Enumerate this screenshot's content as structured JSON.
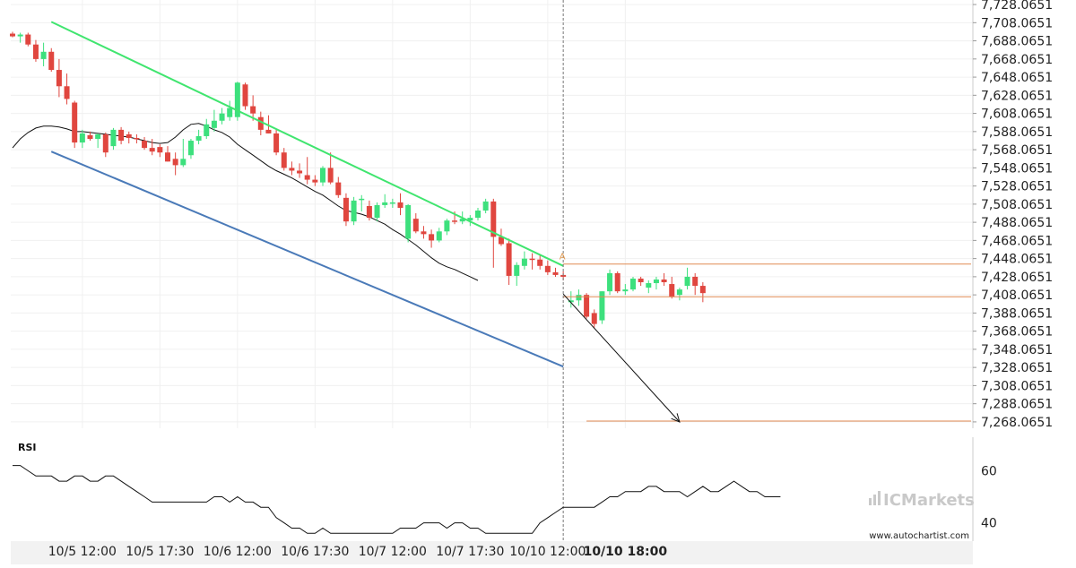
{
  "chart_data": [
    {
      "type": "candlestick",
      "ylim": [
        7261.0651,
        7733.0651
      ],
      "y_ticks": [
        "7,728.0651",
        "7,708.0651",
        "7,688.0651",
        "7,668.0651",
        "7,648.0651",
        "7,628.0651",
        "7,608.0651",
        "7,588.0651",
        "7,568.0651",
        "7,548.0651",
        "7,528.0651",
        "7,508.0651",
        "7,488.0651",
        "7,468.0651",
        "7,448.0651",
        "7,428.0651",
        "7,408.0651",
        "7,388.0651",
        "7,368.0651",
        "7,348.0651",
        "7,328.0651",
        "7,308.0651",
        "7,288.0651",
        "7,268.0651"
      ],
      "y_tick_values": [
        7728.0651,
        7708.0651,
        7688.0651,
        7668.0651,
        7648.0651,
        7628.0651,
        7608.0651,
        7588.0651,
        7568.0651,
        7548.0651,
        7528.0651,
        7508.0651,
        7488.0651,
        7468.0651,
        7448.0651,
        7428.0651,
        7408.0651,
        7388.0651,
        7368.0651,
        7348.0651,
        7328.0651,
        7308.0651,
        7288.0651,
        7268.0651
      ],
      "x_ticks": [
        {
          "label": "10/5 12:00",
          "index": 9,
          "bold": false
        },
        {
          "label": "10/5 17:30",
          "index": 19,
          "bold": false
        },
        {
          "label": "10/6 12:00",
          "index": 29,
          "bold": false
        },
        {
          "label": "10/6 17:30",
          "index": 39,
          "bold": false
        },
        {
          "label": "10/7 12:00",
          "index": 49,
          "bold": false
        },
        {
          "label": "10/7 17:30",
          "index": 59,
          "bold": false
        },
        {
          "label": "10/10 12:00",
          "index": 69,
          "bold": false
        },
        {
          "label": "10/10 18:00",
          "index": 79,
          "bold": true
        }
      ],
      "candles": [
        {
          "o": 7696,
          "h": 7698,
          "l": 7692,
          "c": 7693
        },
        {
          "o": 7693,
          "h": 7697,
          "l": 7686,
          "c": 7695
        },
        {
          "o": 7695,
          "h": 7697,
          "l": 7682,
          "c": 7684
        },
        {
          "o": 7684,
          "h": 7689,
          "l": 7665,
          "c": 7668
        },
        {
          "o": 7668,
          "h": 7686,
          "l": 7660,
          "c": 7676
        },
        {
          "o": 7676,
          "h": 7680,
          "l": 7654,
          "c": 7656
        },
        {
          "o": 7656,
          "h": 7668,
          "l": 7626,
          "c": 7638
        },
        {
          "o": 7638,
          "h": 7652,
          "l": 7618,
          "c": 7624
        },
        {
          "o": 7620,
          "h": 7622,
          "l": 7570,
          "c": 7576
        },
        {
          "o": 7576,
          "h": 7590,
          "l": 7570,
          "c": 7586
        },
        {
          "o": 7584,
          "h": 7588,
          "l": 7578,
          "c": 7580
        },
        {
          "o": 7580,
          "h": 7586,
          "l": 7570,
          "c": 7585
        },
        {
          "o": 7585,
          "h": 7587,
          "l": 7560,
          "c": 7565
        },
        {
          "o": 7572,
          "h": 7592,
          "l": 7568,
          "c": 7590
        },
        {
          "o": 7590,
          "h": 7593,
          "l": 7574,
          "c": 7578
        },
        {
          "o": 7585,
          "h": 7588,
          "l": 7575,
          "c": 7581
        },
        {
          "o": 7581,
          "h": 7585,
          "l": 7575,
          "c": 7580
        },
        {
          "o": 7578,
          "h": 7582,
          "l": 7568,
          "c": 7570
        },
        {
          "o": 7570,
          "h": 7580,
          "l": 7562,
          "c": 7566
        },
        {
          "o": 7571,
          "h": 7574,
          "l": 7560,
          "c": 7565
        },
        {
          "o": 7565,
          "h": 7572,
          "l": 7555,
          "c": 7555
        },
        {
          "o": 7558,
          "h": 7565,
          "l": 7540,
          "c": 7551
        },
        {
          "o": 7551,
          "h": 7580,
          "l": 7549,
          "c": 7558
        },
        {
          "o": 7562,
          "h": 7580,
          "l": 7558,
          "c": 7578
        },
        {
          "o": 7578,
          "h": 7590,
          "l": 7574,
          "c": 7583
        },
        {
          "o": 7583,
          "h": 7602,
          "l": 7580,
          "c": 7596
        },
        {
          "o": 7592,
          "h": 7612,
          "l": 7588,
          "c": 7600
        },
        {
          "o": 7600,
          "h": 7614,
          "l": 7596,
          "c": 7608
        },
        {
          "o": 7604,
          "h": 7622,
          "l": 7600,
          "c": 7614
        },
        {
          "o": 7604,
          "h": 7643,
          "l": 7600,
          "c": 7642
        },
        {
          "o": 7640,
          "h": 7642,
          "l": 7612,
          "c": 7616
        },
        {
          "o": 7616,
          "h": 7628,
          "l": 7600,
          "c": 7608
        },
        {
          "o": 7604,
          "h": 7610,
          "l": 7584,
          "c": 7590
        },
        {
          "o": 7590,
          "h": 7606,
          "l": 7586,
          "c": 7586
        },
        {
          "o": 7586,
          "h": 7590,
          "l": 7562,
          "c": 7565
        },
        {
          "o": 7565,
          "h": 7570,
          "l": 7545,
          "c": 7548
        },
        {
          "o": 7548,
          "h": 7555,
          "l": 7540,
          "c": 7545
        },
        {
          "o": 7545,
          "h": 7553,
          "l": 7537,
          "c": 7542
        },
        {
          "o": 7540,
          "h": 7560,
          "l": 7530,
          "c": 7535
        },
        {
          "o": 7535,
          "h": 7540,
          "l": 7528,
          "c": 7532
        },
        {
          "o": 7532,
          "h": 7550,
          "l": 7528,
          "c": 7548
        },
        {
          "o": 7548,
          "h": 7565,
          "l": 7530,
          "c": 7532
        },
        {
          "o": 7532,
          "h": 7538,
          "l": 7515,
          "c": 7518
        },
        {
          "o": 7515,
          "h": 7520,
          "l": 7484,
          "c": 7489
        },
        {
          "o": 7489,
          "h": 7516,
          "l": 7485,
          "c": 7512
        },
        {
          "o": 7514,
          "h": 7518,
          "l": 7500,
          "c": 7514
        },
        {
          "o": 7506,
          "h": 7512,
          "l": 7490,
          "c": 7493
        },
        {
          "o": 7493,
          "h": 7510,
          "l": 7489,
          "c": 7507
        },
        {
          "o": 7507,
          "h": 7519,
          "l": 7504,
          "c": 7510
        },
        {
          "o": 7510,
          "h": 7514,
          "l": 7504,
          "c": 7510
        },
        {
          "o": 7510,
          "h": 7520,
          "l": 7496,
          "c": 7504
        },
        {
          "o": 7470,
          "h": 7508,
          "l": 7466,
          "c": 7507
        },
        {
          "o": 7492,
          "h": 7498,
          "l": 7476,
          "c": 7478
        },
        {
          "o": 7478,
          "h": 7484,
          "l": 7470,
          "c": 7475
        },
        {
          "o": 7475,
          "h": 7480,
          "l": 7460,
          "c": 7468
        },
        {
          "o": 7468,
          "h": 7482,
          "l": 7466,
          "c": 7478
        },
        {
          "o": 7478,
          "h": 7492,
          "l": 7474,
          "c": 7490
        },
        {
          "o": 7490,
          "h": 7500,
          "l": 7486,
          "c": 7489
        },
        {
          "o": 7489,
          "h": 7500,
          "l": 7486,
          "c": 7492
        },
        {
          "o": 7490,
          "h": 7496,
          "l": 7484,
          "c": 7493
        },
        {
          "o": 7493,
          "h": 7504,
          "l": 7490,
          "c": 7501
        },
        {
          "o": 7501,
          "h": 7514,
          "l": 7498,
          "c": 7511
        },
        {
          "o": 7511,
          "h": 7514,
          "l": 7438,
          "c": 7472
        },
        {
          "o": 7472,
          "h": 7481,
          "l": 7462,
          "c": 7464
        },
        {
          "o": 7465,
          "h": 7470,
          "l": 7419,
          "c": 7429
        },
        {
          "o": 7429,
          "h": 7444,
          "l": 7418,
          "c": 7441
        },
        {
          "o": 7440,
          "h": 7456,
          "l": 7436,
          "c": 7448
        },
        {
          "o": 7448,
          "h": 7454,
          "l": 7436,
          "c": 7447
        },
        {
          "o": 7447,
          "h": 7452,
          "l": 7436,
          "c": 7440
        },
        {
          "o": 7440,
          "h": 7446,
          "l": 7430,
          "c": 7433
        },
        {
          "o": 7433,
          "h": 7438,
          "l": 7428,
          "c": 7430
        },
        {
          "o": 7430,
          "h": 7434,
          "l": 7424,
          "c": 7428
        },
        {
          "o": 7400,
          "h": 7412,
          "l": 7394,
          "c": 7402
        },
        {
          "o": 7402,
          "h": 7414,
          "l": 7396,
          "c": 7408
        },
        {
          "o": 7408,
          "h": 7410,
          "l": 7382,
          "c": 7384
        },
        {
          "o": 7388,
          "h": 7392,
          "l": 7372,
          "c": 7376
        },
        {
          "o": 7380,
          "h": 7412,
          "l": 7376,
          "c": 7412
        },
        {
          "o": 7412,
          "h": 7436,
          "l": 7408,
          "c": 7432
        },
        {
          "o": 7432,
          "h": 7434,
          "l": 7410,
          "c": 7412
        },
        {
          "o": 7412,
          "h": 7420,
          "l": 7408,
          "c": 7414
        },
        {
          "o": 7414,
          "h": 7428,
          "l": 7412,
          "c": 7426
        },
        {
          "o": 7426,
          "h": 7428,
          "l": 7418,
          "c": 7422
        },
        {
          "o": 7416,
          "h": 7424,
          "l": 7410,
          "c": 7421
        },
        {
          "o": 7421,
          "h": 7428,
          "l": 7414,
          "c": 7425
        },
        {
          "o": 7425,
          "h": 7432,
          "l": 7418,
          "c": 7422
        },
        {
          "o": 7420,
          "h": 7428,
          "l": 7404,
          "c": 7406
        },
        {
          "o": 7408,
          "h": 7416,
          "l": 7402,
          "c": 7414
        },
        {
          "o": 7418,
          "h": 7438,
          "l": 7414,
          "c": 7428
        },
        {
          "o": 7428,
          "h": 7432,
          "l": 7408,
          "c": 7418
        },
        {
          "o": 7418,
          "h": 7422,
          "l": 7400,
          "c": 7410
        }
      ],
      "moving_average": [
        7570,
        7580,
        7587,
        7592,
        7594,
        7594,
        7593,
        7591,
        7588,
        7588,
        7587,
        7586,
        7585,
        7584,
        7583,
        7582,
        7580,
        7578,
        7576,
        7575,
        7576,
        7582,
        7590,
        7596,
        7597,
        7594,
        7590,
        7587,
        7582,
        7574,
        7568,
        7562,
        7556,
        7550,
        7545,
        7541,
        7537,
        7532,
        7527,
        7522,
        7518,
        7512,
        7506,
        7501,
        7499,
        7497,
        7494,
        7490,
        7486,
        7480,
        7475,
        7469,
        7463,
        7456,
        7449,
        7443,
        7439,
        7436,
        7432,
        7428,
        7424
      ],
      "moving_average_start_index": 0,
      "channel_upper": {
        "from": {
          "index": 5,
          "value": 7709
        },
        "to": {
          "index": 71,
          "value": 7440
        }
      },
      "channel_lower": {
        "from": {
          "index": 5,
          "value": 7566
        },
        "to": {
          "index": 71,
          "value": 7329
        }
      },
      "breakout_marker": {
        "label": "A",
        "index": 71,
        "value": 7445
      },
      "projection": {
        "from": {
          "index": 71,
          "value": 7409
        },
        "to": {
          "index": 86,
          "value": 7268
        }
      },
      "levels": [
        {
          "value": 7442,
          "from_index": 71
        },
        {
          "value": 7406,
          "from_index": 71
        },
        {
          "value": 7269,
          "from_index": 74
        }
      ],
      "current_index": 71
    },
    {
      "type": "line",
      "title": "RSI",
      "ylim": [
        33,
        66
      ],
      "y_ticks": [
        "60",
        "40"
      ],
      "y_tick_values": [
        60,
        40
      ],
      "values": [
        62,
        62,
        60,
        58,
        58,
        58,
        56,
        56,
        58,
        58,
        56,
        56,
        58,
        58,
        56,
        54,
        52,
        50,
        48,
        48,
        48,
        48,
        48,
        48,
        48,
        48,
        50,
        50,
        48,
        50,
        48,
        48,
        46,
        46,
        42,
        40,
        38,
        38,
        36,
        36,
        38,
        36,
        36,
        36,
        36,
        36,
        36,
        36,
        36,
        36,
        38,
        38,
        38,
        40,
        40,
        40,
        38,
        40,
        40,
        38,
        38,
        36,
        36,
        36,
        36,
        36,
        36,
        36,
        40,
        42,
        44,
        46,
        46,
        46,
        46,
        46,
        48,
        50,
        50,
        52,
        52,
        52,
        54,
        54,
        52,
        52,
        52,
        50,
        52,
        54,
        52,
        52,
        54,
        56,
        54,
        52,
        52,
        50,
        50,
        50
      ]
    }
  ],
  "watermark": {
    "brand": "ICMarkets",
    "site": "www.autochartist.com"
  },
  "colors": {
    "up": "#3de07d",
    "down": "#e0463f",
    "channel_upper": "#40e56f",
    "channel_lower": "#4a7ab8",
    "levels": "#e08a52",
    "marker": "#e09a52"
  }
}
